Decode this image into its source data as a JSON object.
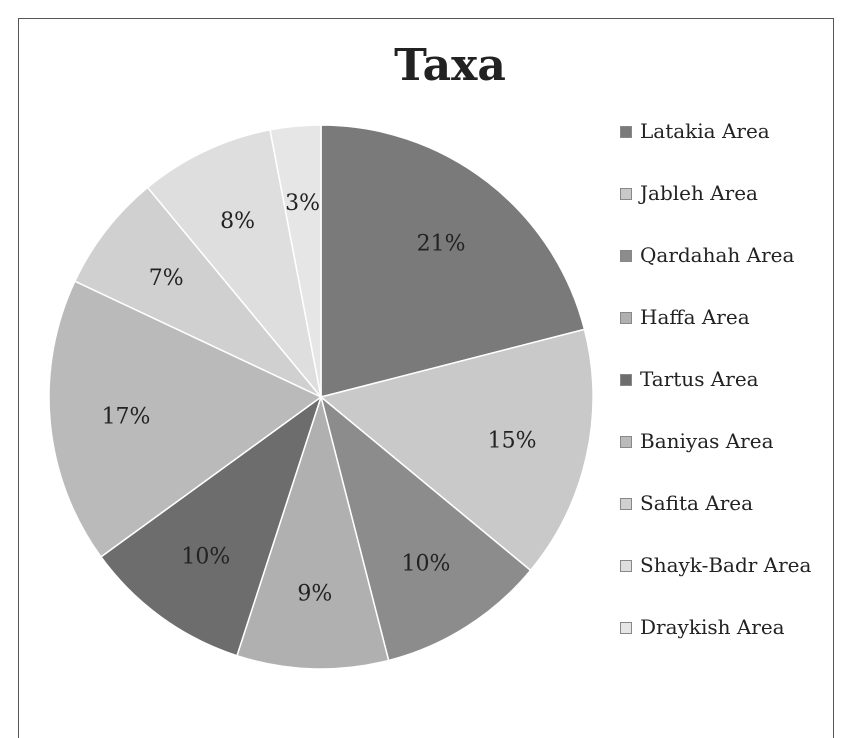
{
  "chart_data": {
    "type": "pie",
    "title": "Taxa",
    "categories": [
      "Latakia Area",
      "Jableh Area",
      "Qardahah Area",
      "Haffa Area",
      "Tartus Area",
      "Baniyas Area",
      "Safita Area",
      "Shayk-Badr Area",
      "Draykish Area"
    ],
    "values": [
      21,
      15,
      10,
      9,
      10,
      17,
      7,
      8,
      3
    ],
    "labels": [
      "21%",
      "15%",
      "10%",
      "9%",
      "10%",
      "17%",
      "7%",
      "8%",
      "3%"
    ],
    "colors": [
      "#7a7a7a",
      "#c9c9c9",
      "#8c8c8c",
      "#b0b0b0",
      "#6d6d6d",
      "#bababa",
      "#d0d0d0",
      "#dedede",
      "#e6e6e6"
    ],
    "legend_position": "right"
  }
}
